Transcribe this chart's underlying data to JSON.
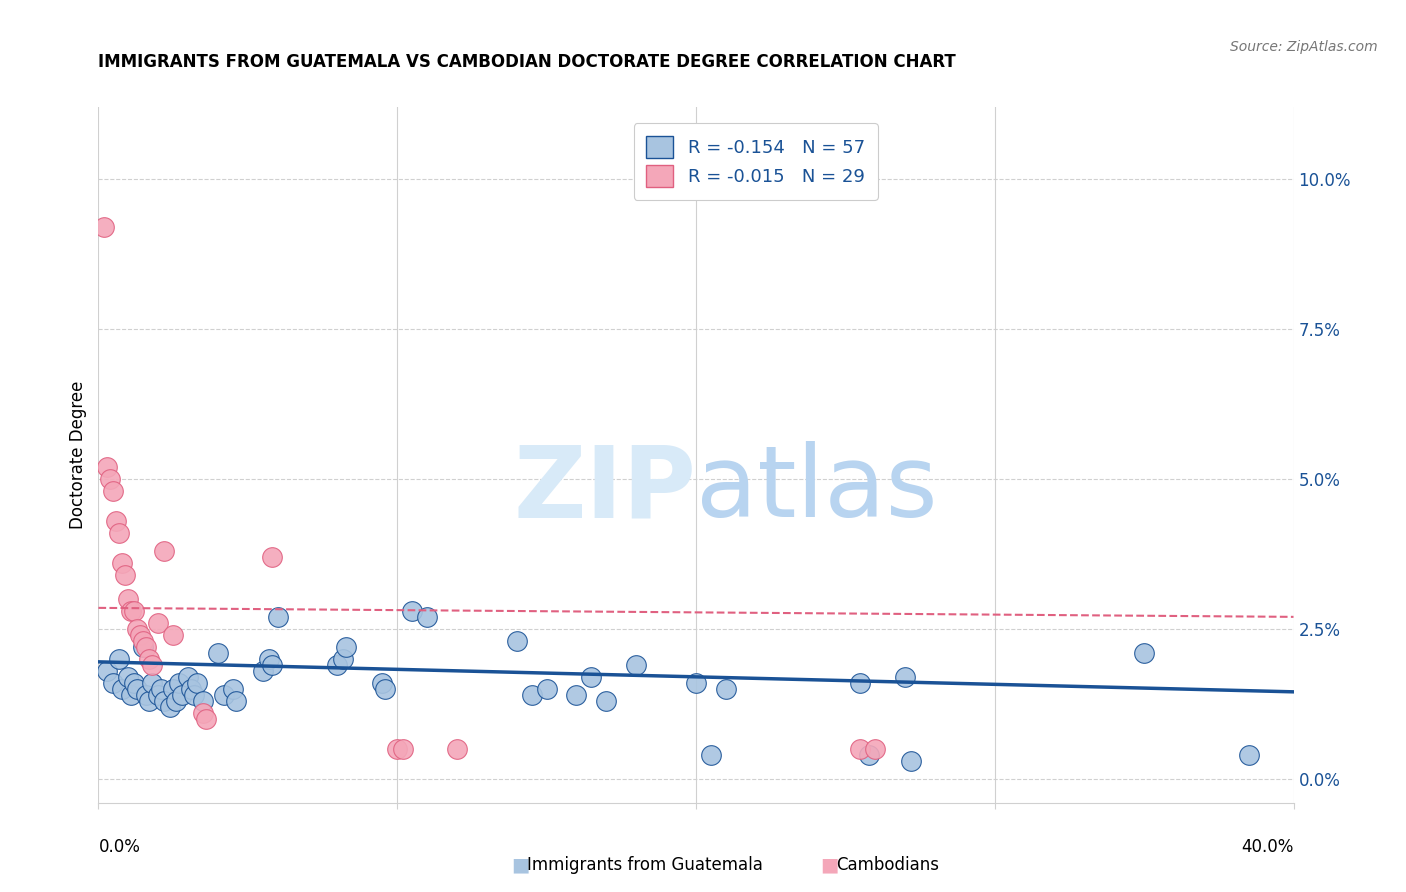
{
  "title": "IMMIGRANTS FROM GUATEMALA VS CAMBODIAN DOCTORATE DEGREE CORRELATION CHART",
  "source": "Source: ZipAtlas.com",
  "ylabel": "Doctorate Degree",
  "ytick_values": [
    0.0,
    2.5,
    5.0,
    7.5,
    10.0
  ],
  "xtick_values": [
    0.0,
    10.0,
    20.0,
    30.0,
    40.0
  ],
  "xlim": [
    0.0,
    40.0
  ],
  "ylim": [
    -0.4,
    11.2
  ],
  "color_blue": "#a8c4e0",
  "color_pink": "#f4a7b9",
  "color_blue_line": "#1a5296",
  "color_pink_line": "#e06080",
  "color_grid": "#d0d0d0",
  "blue_scatter": [
    [
      0.3,
      1.8
    ],
    [
      0.5,
      1.6
    ],
    [
      0.7,
      2.0
    ],
    [
      0.8,
      1.5
    ],
    [
      1.0,
      1.7
    ],
    [
      1.1,
      1.4
    ],
    [
      1.2,
      1.6
    ],
    [
      1.3,
      1.5
    ],
    [
      1.5,
      2.2
    ],
    [
      1.6,
      1.4
    ],
    [
      1.7,
      1.3
    ],
    [
      1.8,
      1.6
    ],
    [
      2.0,
      1.4
    ],
    [
      2.1,
      1.5
    ],
    [
      2.2,
      1.3
    ],
    [
      2.4,
      1.2
    ],
    [
      2.5,
      1.5
    ],
    [
      2.6,
      1.3
    ],
    [
      2.7,
      1.6
    ],
    [
      2.8,
      1.4
    ],
    [
      3.0,
      1.7
    ],
    [
      3.1,
      1.5
    ],
    [
      3.2,
      1.4
    ],
    [
      3.3,
      1.6
    ],
    [
      3.5,
      1.3
    ],
    [
      4.0,
      2.1
    ],
    [
      4.2,
      1.4
    ],
    [
      4.5,
      1.5
    ],
    [
      4.6,
      1.3
    ],
    [
      5.5,
      1.8
    ],
    [
      5.7,
      2.0
    ],
    [
      5.8,
      1.9
    ],
    [
      6.0,
      2.7
    ],
    [
      8.0,
      1.9
    ],
    [
      8.2,
      2.0
    ],
    [
      8.3,
      2.2
    ],
    [
      9.5,
      1.6
    ],
    [
      9.6,
      1.5
    ],
    [
      10.5,
      2.8
    ],
    [
      11.0,
      2.7
    ],
    [
      14.0,
      2.3
    ],
    [
      14.5,
      1.4
    ],
    [
      15.0,
      1.5
    ],
    [
      16.0,
      1.4
    ],
    [
      16.5,
      1.7
    ],
    [
      17.0,
      1.3
    ],
    [
      18.0,
      1.9
    ],
    [
      20.0,
      1.6
    ],
    [
      20.5,
      0.4
    ],
    [
      21.0,
      1.5
    ],
    [
      25.5,
      1.6
    ],
    [
      25.8,
      0.4
    ],
    [
      27.0,
      1.7
    ],
    [
      27.2,
      0.3
    ],
    [
      35.0,
      2.1
    ],
    [
      38.5,
      0.4
    ]
  ],
  "pink_scatter": [
    [
      0.2,
      9.2
    ],
    [
      0.3,
      5.2
    ],
    [
      0.4,
      5.0
    ],
    [
      0.5,
      4.8
    ],
    [
      0.6,
      4.3
    ],
    [
      0.7,
      4.1
    ],
    [
      0.8,
      3.6
    ],
    [
      0.9,
      3.4
    ],
    [
      1.0,
      3.0
    ],
    [
      1.1,
      2.8
    ],
    [
      1.2,
      2.8
    ],
    [
      1.3,
      2.5
    ],
    [
      1.4,
      2.4
    ],
    [
      1.5,
      2.3
    ],
    [
      1.6,
      2.2
    ],
    [
      1.7,
      2.0
    ],
    [
      1.8,
      1.9
    ],
    [
      2.0,
      2.6
    ],
    [
      2.2,
      3.8
    ],
    [
      2.5,
      2.4
    ],
    [
      3.5,
      1.1
    ],
    [
      3.6,
      1.0
    ],
    [
      5.8,
      3.7
    ],
    [
      10.0,
      0.5
    ],
    [
      10.2,
      0.5
    ],
    [
      12.0,
      0.5
    ],
    [
      25.5,
      0.5
    ],
    [
      26.0,
      0.5
    ]
  ],
  "blue_trendline": [
    [
      0.0,
      1.95
    ],
    [
      40.0,
      1.45
    ]
  ],
  "pink_trendline": [
    [
      0.0,
      2.85
    ],
    [
      40.0,
      2.7
    ]
  ]
}
